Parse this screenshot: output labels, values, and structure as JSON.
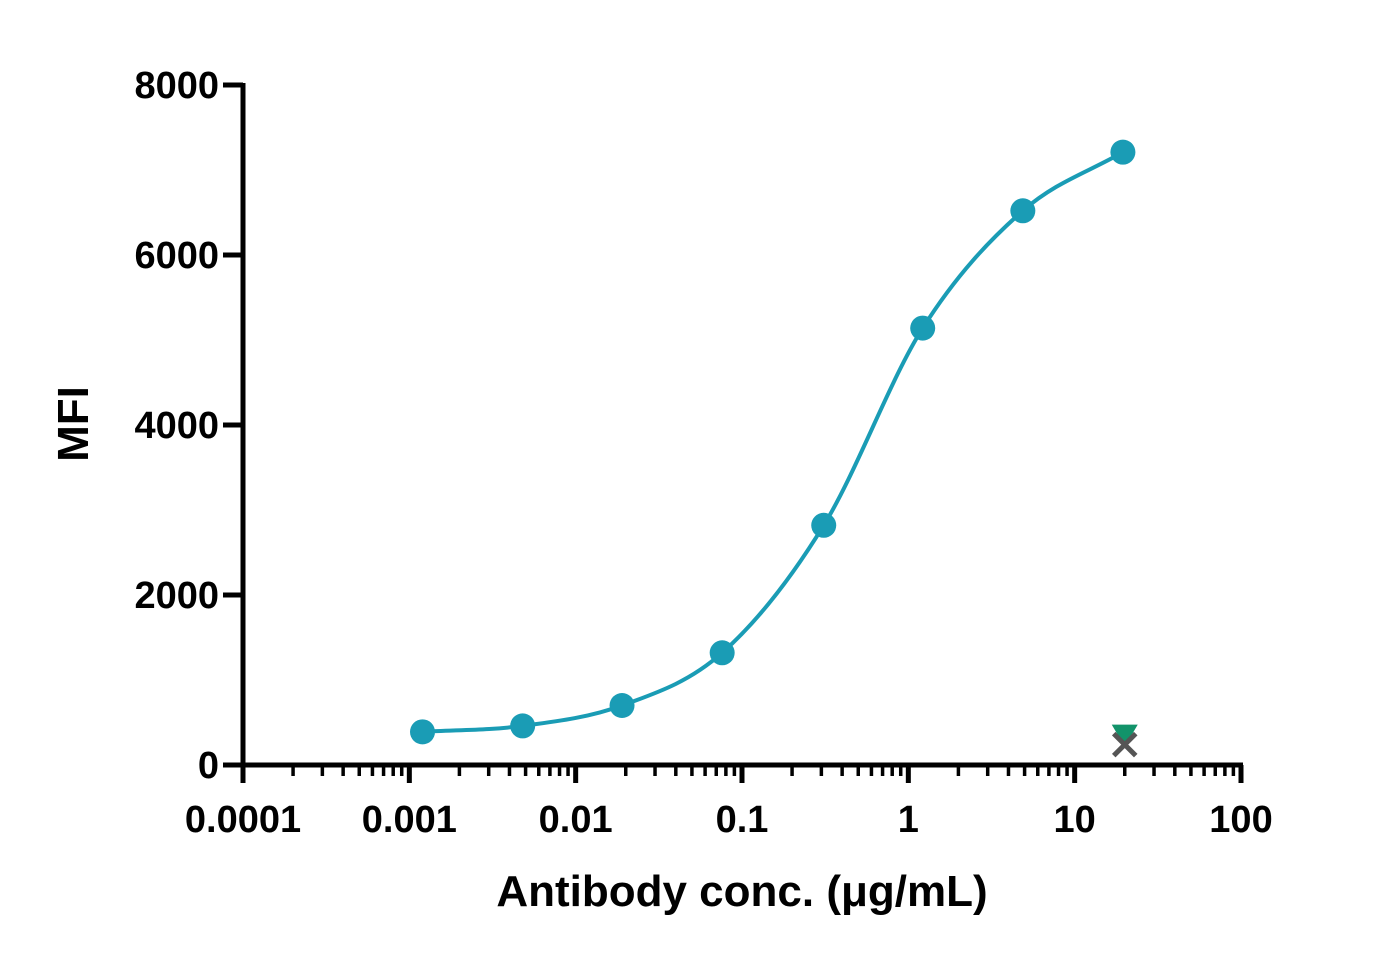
{
  "chart_data": {
    "type": "scatter",
    "title": "",
    "xlabel": "Antibody conc. (μg/mL)",
    "ylabel": "MFI",
    "x_scale": "log",
    "xlim": [
      0.0001,
      100
    ],
    "ylim": [
      0,
      8000
    ],
    "x_ticks": [
      "0.0001",
      "0.001",
      "0.01",
      "0.1",
      "1",
      "10",
      "100"
    ],
    "y_ticks": [
      "0",
      "2000",
      "4000",
      "6000",
      "8000"
    ],
    "grid": false,
    "legend": "none",
    "series": [
      {
        "marker": "circle",
        "color": "#1a9cb5",
        "fit_curve": true,
        "points": [
          {
            "x": 0.0012,
            "y": 390
          },
          {
            "x": 0.0048,
            "y": 460
          },
          {
            "x": 0.019,
            "y": 700
          },
          {
            "x": 0.076,
            "y": 1320
          },
          {
            "x": 0.31,
            "y": 2820
          },
          {
            "x": 1.22,
            "y": 5140
          },
          {
            "x": 4.88,
            "y": 6520
          },
          {
            "x": 19.5,
            "y": 7210
          }
        ]
      },
      {
        "marker": "triangle-down",
        "color": "#12936a",
        "fit_curve": false,
        "points": [
          {
            "x": 20,
            "y": 360
          }
        ]
      },
      {
        "marker": "x",
        "color": "#555555",
        "fit_curve": false,
        "points": [
          {
            "x": 20,
            "y": 240
          }
        ]
      }
    ]
  }
}
